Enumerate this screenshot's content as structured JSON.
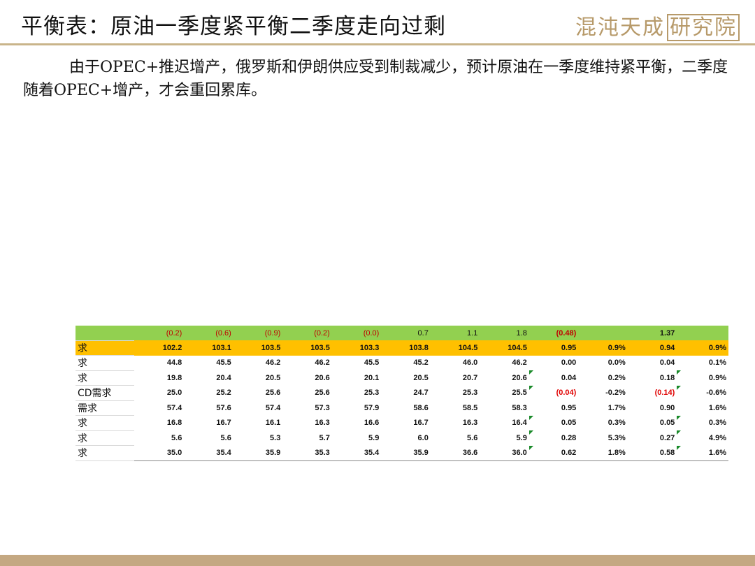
{
  "header": {
    "title": "平衡表：原油一季度紧平衡二季度走向过剩",
    "logo_text": "混沌天成",
    "logo_boxed": "研究院"
  },
  "body": {
    "paragraph": "由于OPEC+推迟增产，俄罗斯和伊朗供应受到制裁减少，预计原油在一季度维持紧平衡，二季度随着OPEC+增产，才会重回累库。"
  },
  "table": {
    "top_row": {
      "label": "",
      "cells": [
        "(0.2)",
        "(0.6)",
        "(0.9)",
        "(0.2)",
        "(0.0)",
        "0.7",
        "1.1",
        "1.8",
        "(0.48)",
        "",
        "1.37",
        ""
      ]
    },
    "total_row": {
      "label": "求",
      "cells": [
        "102.2",
        "103.1",
        "103.5",
        "103.5",
        "103.3",
        "103.8",
        "104.5",
        "104.5",
        "0.95",
        "0.9%",
        "0.94",
        "0.9%"
      ]
    },
    "rows": [
      {
        "label": "求",
        "cells": [
          "44.8",
          "45.5",
          "46.2",
          "46.2",
          "45.5",
          "45.2",
          "46.0",
          "46.2",
          "0.00",
          "0.0%",
          "0.04",
          "0.1%"
        ]
      },
      {
        "label": "求",
        "cells": [
          "19.8",
          "20.4",
          "20.5",
          "20.6",
          "20.1",
          "20.5",
          "20.7",
          "20.6",
          "0.04",
          "0.2%",
          "0.18",
          "0.9%"
        ]
      },
      {
        "label": "CD需求",
        "cells": [
          "25.0",
          "25.2",
          "25.6",
          "25.6",
          "25.3",
          "24.7",
          "25.3",
          "25.5",
          "(0.04)",
          "-0.2%",
          "(0.14)",
          "-0.6%"
        ]
      },
      {
        "label": "需求",
        "cells": [
          "57.4",
          "57.6",
          "57.4",
          "57.3",
          "57.9",
          "58.6",
          "58.5",
          "58.3",
          "0.95",
          "1.7%",
          "0.90",
          "1.6%"
        ]
      },
      {
        "label": "求",
        "cells": [
          "16.8",
          "16.7",
          "16.1",
          "16.3",
          "16.6",
          "16.7",
          "16.3",
          "16.4",
          "0.05",
          "0.3%",
          "0.05",
          "0.3%"
        ]
      },
      {
        "label": "求",
        "cells": [
          "5.6",
          "5.6",
          "5.3",
          "5.7",
          "5.9",
          "6.0",
          "5.6",
          "5.9",
          "0.28",
          "5.3%",
          "0.27",
          "4.9%"
        ]
      },
      {
        "label": "求",
        "cells": [
          "35.0",
          "35.4",
          "35.9",
          "35.3",
          "35.4",
          "35.9",
          "36.6",
          "36.0",
          "0.62",
          "1.8%",
          "0.58",
          "1.6%"
        ]
      }
    ]
  },
  "colors": {
    "green_row": "#92d050",
    "orange_row": "#ffc000",
    "negative": "#e00000",
    "accent_rule": "#c9b48a",
    "footer": "#c4a882"
  }
}
